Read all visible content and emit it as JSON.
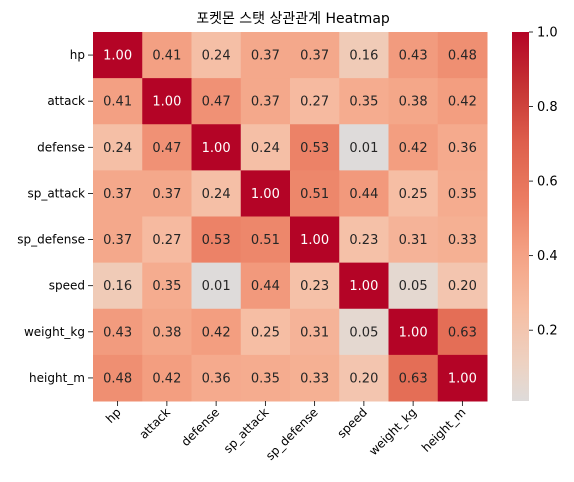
{
  "chart_data": {
    "type": "heatmap",
    "title": "포켓몬 스탯 상관관계 Heatmap",
    "labels": [
      "hp",
      "attack",
      "defense",
      "sp_attack",
      "sp_defense",
      "speed",
      "weight_kg",
      "height_m"
    ],
    "matrix": [
      [
        1.0,
        0.41,
        0.24,
        0.37,
        0.37,
        0.16,
        0.43,
        0.48
      ],
      [
        0.41,
        1.0,
        0.47,
        0.37,
        0.27,
        0.35,
        0.38,
        0.42
      ],
      [
        0.24,
        0.47,
        1.0,
        0.24,
        0.53,
        0.01,
        0.42,
        0.36
      ],
      [
        0.37,
        0.37,
        0.24,
        1.0,
        0.51,
        0.44,
        0.25,
        0.35
      ],
      [
        0.37,
        0.27,
        0.53,
        0.51,
        1.0,
        0.23,
        0.31,
        0.33
      ],
      [
        0.16,
        0.35,
        0.01,
        0.44,
        0.23,
        1.0,
        0.05,
        0.2
      ],
      [
        0.43,
        0.38,
        0.42,
        0.25,
        0.31,
        0.05,
        1.0,
        0.63
      ],
      [
        0.48,
        0.42,
        0.36,
        0.35,
        0.33,
        0.2,
        0.63,
        1.0
      ]
    ],
    "colorbar": {
      "min": 0.01,
      "max": 1.0,
      "ticks": [
        0.2,
        0.4,
        0.6,
        0.8,
        1.0
      ],
      "tick_labels": [
        "0.2",
        "0.4",
        "0.6",
        "0.8",
        "1.0"
      ],
      "colormap": "coolwarm",
      "center": 0
    },
    "annotations": true,
    "value_format": "0.00",
    "x_tick_rotation": 45,
    "grid": false
  }
}
